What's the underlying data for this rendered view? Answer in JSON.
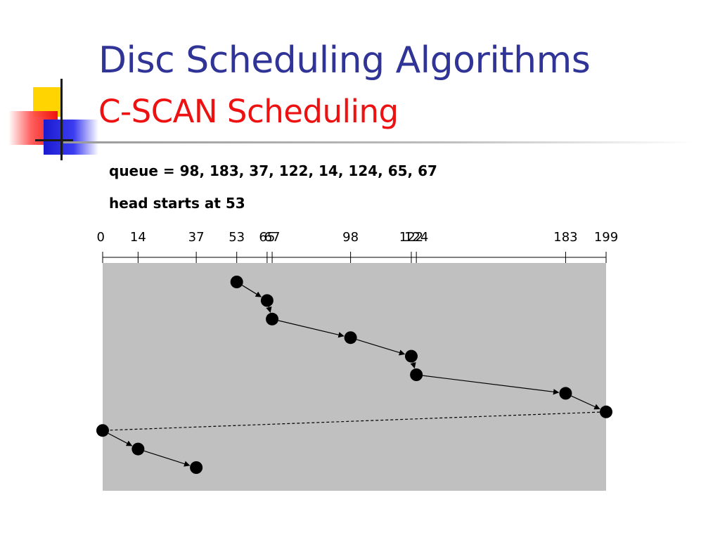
{
  "slide": {
    "title": "Disc Scheduling Algorithms",
    "subtitle": "C-SCAN Scheduling",
    "queue_text": "queue = 98, 183, 37, 122, 14, 124, 65, 67",
    "head_text": "head starts at 53"
  },
  "colors": {
    "title": "#2f3496",
    "subtitle": "#ee1111",
    "area_fill": "#c0c0c0",
    "point": "#000000"
  },
  "chart_data": {
    "type": "scatter",
    "x_range": [
      0,
      199
    ],
    "tick_labels": [
      "0",
      "14",
      "37",
      "53",
      "65",
      "67",
      "98",
      "122",
      "124",
      "183",
      "199"
    ],
    "service_order": [
      53,
      65,
      67,
      98,
      122,
      124,
      183,
      199,
      0,
      14,
      37
    ],
    "jump_segment": {
      "from": 199,
      "to": 0,
      "style": "dashed"
    }
  }
}
